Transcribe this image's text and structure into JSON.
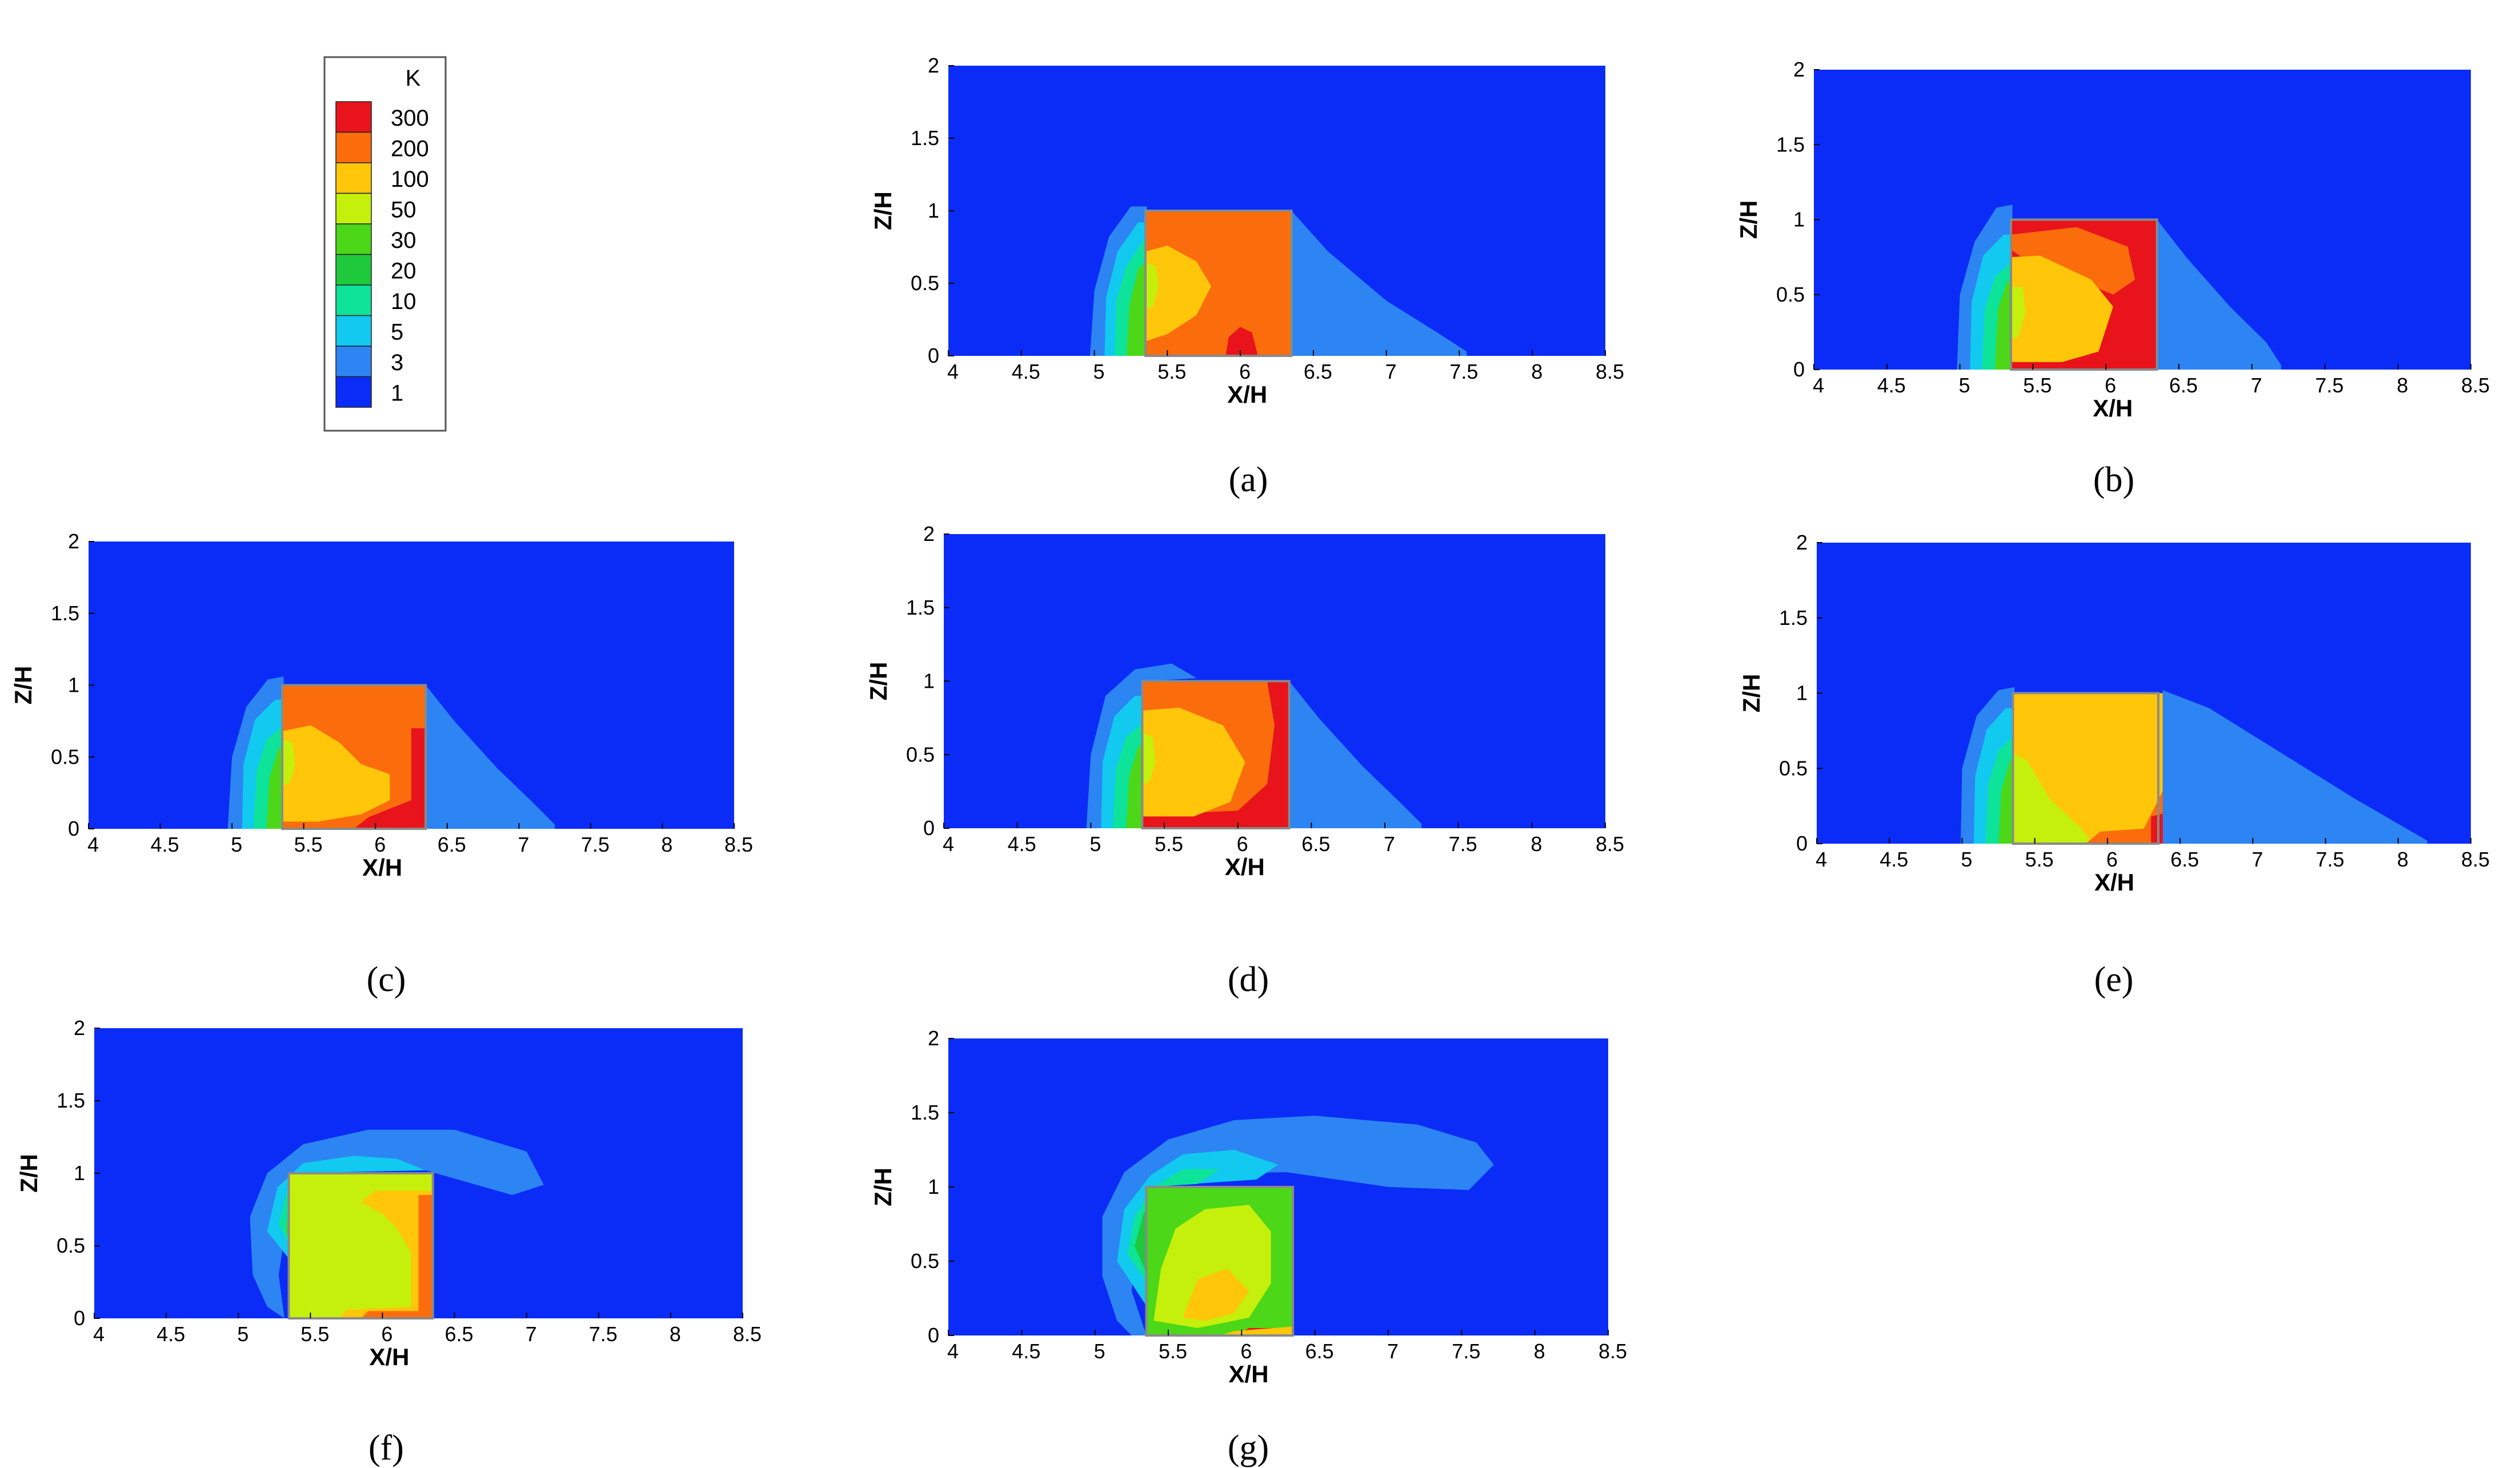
{
  "legend": {
    "title": "K",
    "levels": [
      {
        "label": "300",
        "color": "#e8131b"
      },
      {
        "label": "200",
        "color": "#fb6d0c"
      },
      {
        "label": "100",
        "color": "#ffc60a"
      },
      {
        "label": "50",
        "color": "#c5f00c"
      },
      {
        "label": "30",
        "color": "#4cd718"
      },
      {
        "label": "20",
        "color": "#1ec93c"
      },
      {
        "label": "10",
        "color": "#0ee39a"
      },
      {
        "label": "5",
        "color": "#12c9f0"
      },
      {
        "label": "3",
        "color": "#2d84f3"
      },
      {
        "label": "1",
        "color": "#0b2cf6"
      }
    ]
  },
  "chart_data": [
    {
      "panel": "(a)",
      "type": "heatmap",
      "xlabel": "X/H",
      "ylabel": "Z/H",
      "xlim": [
        4,
        8.5
      ],
      "ylim": [
        0,
        2
      ],
      "xticks": [
        "4",
        "4.5",
        "5",
        "5.5",
        "6",
        "6.5",
        "7",
        "7.5",
        "8",
        "8.5"
      ],
      "yticks": [
        "0",
        "0.5",
        "1",
        "1.5",
        "2"
      ],
      "building": {
        "x": [
          5.35,
          6.35
        ],
        "z": [
          0,
          1
        ],
        "interior_level": "200"
      },
      "wake_extent_x": 7.55,
      "upstream_extent_x": 4.97,
      "plume_top_z": 1.05
    },
    {
      "panel": "(b)",
      "type": "heatmap",
      "xlabel": "X/H",
      "ylabel": "Z/H",
      "xlim": [
        4,
        8.5
      ],
      "ylim": [
        0,
        2
      ],
      "xticks": [
        "4",
        "4.5",
        "5",
        "5.5",
        "6",
        "6.5",
        "7",
        "7.5",
        "8",
        "8.5"
      ],
      "yticks": [
        "0",
        "0.5",
        "1",
        "1.5",
        "2"
      ],
      "building": {
        "x": [
          5.35,
          6.35
        ],
        "z": [
          0,
          1
        ],
        "interior_level": "300"
      },
      "wake_extent_x": 7.2,
      "upstream_extent_x": 4.98,
      "plume_top_z": 1.1
    },
    {
      "panel": "(c)",
      "type": "heatmap",
      "xlabel": "X/H",
      "ylabel": "Z/H",
      "xlim": [
        4,
        8.5
      ],
      "ylim": [
        0,
        2
      ],
      "xticks": [
        "4",
        "4.5",
        "5",
        "5.5",
        "6",
        "6.5",
        "7",
        "7.5",
        "8",
        "8.5"
      ],
      "yticks": [
        "0",
        "0.5",
        "1",
        "1.5",
        "2"
      ],
      "building": {
        "x": [
          5.35,
          6.35
        ],
        "z": [
          0,
          1
        ],
        "interior_level": "200"
      },
      "wake_extent_x": 7.25,
      "upstream_extent_x": 4.97,
      "plume_top_z": 1.06
    },
    {
      "panel": "(d)",
      "type": "heatmap",
      "xlabel": "X/H",
      "ylabel": "Z/H",
      "xlim": [
        4,
        8.5
      ],
      "ylim": [
        0,
        2
      ],
      "xticks": [
        "4",
        "4.5",
        "5",
        "5.5",
        "6",
        "6.5",
        "7",
        "7.5",
        "8",
        "8.5"
      ],
      "yticks": [
        "0",
        "0.5",
        "1",
        "1.5",
        "2"
      ],
      "building": {
        "x": [
          5.35,
          6.35
        ],
        "z": [
          0,
          1
        ],
        "interior_level": "200"
      },
      "wake_extent_x": 7.25,
      "upstream_extent_x": 4.97,
      "plume_top_z": 1.12
    },
    {
      "panel": "(e)",
      "type": "heatmap",
      "xlabel": "X/H",
      "ylabel": "Z/H",
      "xlim": [
        4,
        8.5
      ],
      "ylim": [
        0,
        2
      ],
      "xticks": [
        "4",
        "4.5",
        "5",
        "5.5",
        "6",
        "6.5",
        "7",
        "7.5",
        "8",
        "8.5"
      ],
      "yticks": [
        "0",
        "0.5",
        "1",
        "1.5",
        "2"
      ],
      "building": {
        "x": [
          5.35,
          6.35
        ],
        "z": [
          0,
          1
        ],
        "interior_level": "100"
      },
      "wake_extent_x": 8.2,
      "upstream_extent_x": 4.99,
      "plume_top_z": 1.05
    },
    {
      "panel": "(f)",
      "type": "heatmap",
      "xlabel": "X/H",
      "ylabel": "Z/H",
      "xlim": [
        4,
        8.5
      ],
      "ylim": [
        0,
        2
      ],
      "xticks": [
        "4",
        "4.5",
        "5",
        "5.5",
        "6",
        "6.5",
        "7",
        "7.5",
        "8",
        "8.5"
      ],
      "yticks": [
        "0",
        "0.5",
        "1",
        "1.5",
        "2"
      ],
      "building": {
        "x": [
          5.35,
          6.35
        ],
        "z": [
          0,
          1
        ],
        "interior_level": "50"
      },
      "wake_extent_x": 7.12,
      "upstream_extent_x": 5.1,
      "plume_top_z": 1.3
    },
    {
      "panel": "(g)",
      "type": "heatmap",
      "xlabel": "X/H",
      "ylabel": "Z/H",
      "xlim": [
        4,
        8.5
      ],
      "ylim": [
        0,
        2
      ],
      "xticks": [
        "4",
        "4.5",
        "5",
        "5.5",
        "6",
        "6.5",
        "7",
        "7.5",
        "8",
        "8.5"
      ],
      "yticks": [
        "0",
        "0.5",
        "1",
        "1.5",
        "2"
      ],
      "building": {
        "x": [
          5.35,
          6.35
        ],
        "z": [
          0,
          1
        ],
        "interior_level": "50"
      },
      "wake_extent_x": 7.72,
      "upstream_extent_x": 5.1,
      "plume_top_z": 1.48
    }
  ]
}
